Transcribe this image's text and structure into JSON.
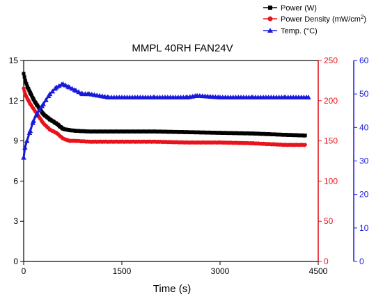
{
  "chart_data": {
    "type": "line",
    "title": "MMPL 40RH FAN24V",
    "xlabel": "Time (s)",
    "xlim": [
      0,
      4500
    ],
    "xticks": [
      0,
      1500,
      3000,
      4500
    ],
    "grid": false,
    "legend_position": "top-right",
    "axes": [
      {
        "id": "y1",
        "side": "left",
        "range": [
          0,
          15
        ],
        "ticks": [
          0,
          3,
          6,
          9,
          12,
          15
        ],
        "tick_labels": [
          "0",
          "3",
          "6",
          "9",
          "12",
          "15"
        ],
        "color": "#000000"
      },
      {
        "id": "y2",
        "side": "right",
        "range": [
          0,
          250
        ],
        "ticks": [
          0,
          50,
          100,
          150,
          200,
          250
        ],
        "tick_labels": [
          "0",
          "50",
          "100",
          "150",
          "200",
          "250"
        ],
        "color": "#e8141c"
      },
      {
        "id": "y3",
        "side": "right-offset",
        "range": [
          0,
          60
        ],
        "ticks": [
          0,
          10,
          20,
          30,
          40,
          50,
          60
        ],
        "tick_labels": [
          "0",
          "10",
          "20",
          "30",
          "40",
          "50",
          "60"
        ],
        "color": "#1a1adc"
      }
    ],
    "series": [
      {
        "name": "Power (W)",
        "axis": "y1",
        "color": "#000000",
        "marker": "square",
        "x": [
          0,
          30,
          60,
          100,
          150,
          200,
          300,
          400,
          500,
          600,
          700,
          800,
          1000,
          1200,
          1500,
          2000,
          2500,
          3000,
          3500,
          4000,
          4300
        ],
        "y": [
          14.0,
          13.4,
          13.0,
          12.6,
          12.1,
          11.7,
          11.0,
          10.6,
          10.3,
          9.9,
          9.8,
          9.75,
          9.7,
          9.7,
          9.7,
          9.7,
          9.65,
          9.6,
          9.55,
          9.45,
          9.4
        ]
      },
      {
        "name": "Power Density (mW/cm2)",
        "axis": "y2",
        "color": "#e8141c",
        "marker": "circle",
        "x": [
          0,
          30,
          60,
          100,
          150,
          200,
          300,
          400,
          500,
          600,
          700,
          800,
          1000,
          1200,
          1500,
          2000,
          2500,
          3000,
          3500,
          4000,
          4300
        ],
        "y": [
          215,
          207,
          202,
          196,
          190,
          184,
          172,
          164,
          160,
          153,
          150,
          150,
          149,
          149,
          149,
          149,
          148,
          148,
          147,
          145,
          145
        ]
      },
      {
        "name": "Temp. (°C)",
        "axis": "y3",
        "color": "#1a1adc",
        "marker": "triangle",
        "x": [
          0,
          20,
          50,
          100,
          150,
          200,
          300,
          400,
          500,
          600,
          700,
          800,
          900,
          1000,
          1300,
          1500,
          2000,
          2500,
          2650,
          3000,
          3500,
          4000,
          4350
        ],
        "y": [
          31,
          34,
          36,
          39,
          42,
          44,
          47,
          50,
          52,
          53,
          52,
          51,
          50,
          50,
          49,
          49,
          49,
          49,
          49.5,
          49,
          49,
          49,
          49
        ]
      }
    ]
  },
  "legend": {
    "power": "Power (W)",
    "density_main": "Power Density (mW/cm",
    "density_sup": "2",
    "density_end": ")",
    "temp": "Temp. (°C)"
  }
}
